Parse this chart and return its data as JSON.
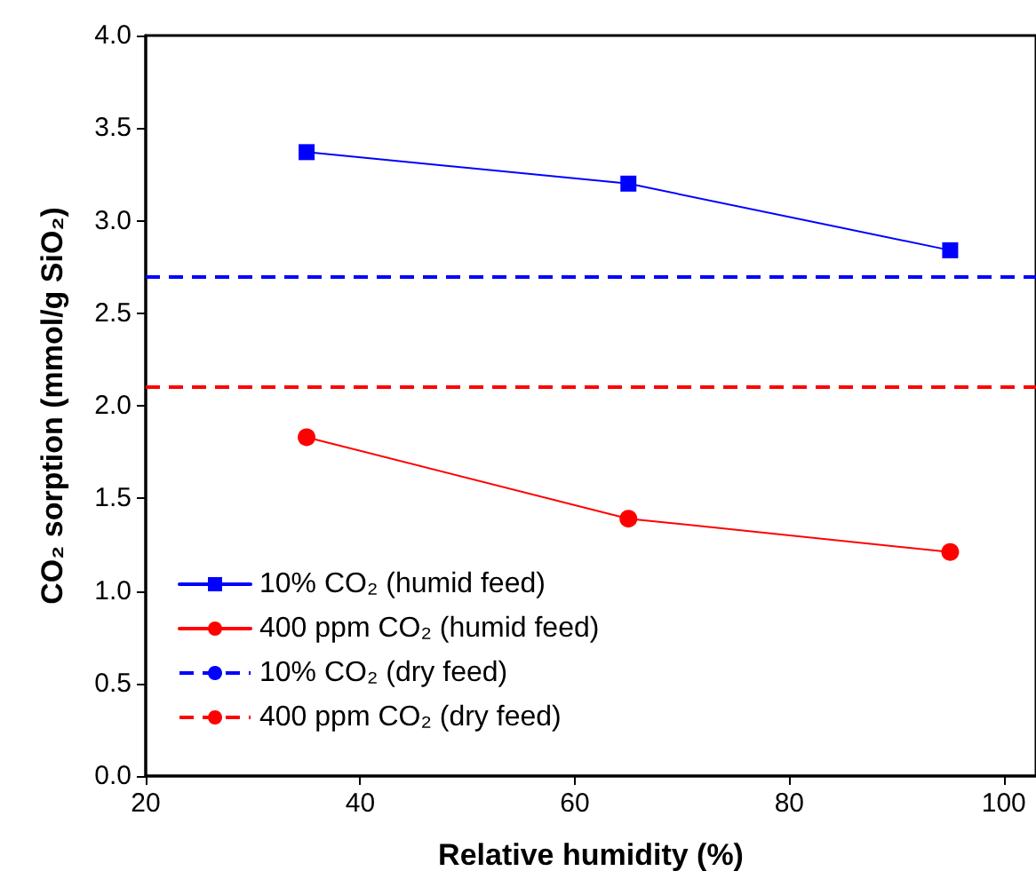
{
  "chart_data": {
    "type": "line",
    "xlabel": "Relative humidity (%)",
    "ylabel": "CO₂ sorption (mmol/g SiO₂)",
    "x": [
      35,
      65,
      95
    ],
    "series": [
      {
        "name": "10% CO₂ (humid feed)",
        "color": "#0000ff",
        "values": [
          3.37,
          3.2,
          2.84
        ],
        "marker": "square"
      },
      {
        "name": "400 ppm CO₂ (humid feed)",
        "color": "#ff0000",
        "values": [
          1.83,
          1.39,
          1.21
        ],
        "marker": "circle"
      }
    ],
    "ref_lines": [
      {
        "axis": "y",
        "value": 2.7,
        "label": "10% CO₂ (dry feed)",
        "color": "#0000ff",
        "line_style": "dashed"
      },
      {
        "axis": "y",
        "value": 2.1,
        "label": "400 ppm CO₂ (dry feed)",
        "color": "#ff0000",
        "line_style": "dashed"
      }
    ],
    "xlim": [
      20,
      103
    ],
    "xticks": [
      20,
      40,
      60,
      80,
      100
    ],
    "ylim": [
      0,
      4
    ],
    "yticks": [
      {
        "value": 0,
        "label": "0.0"
      },
      {
        "value": 0.5,
        "label": "0.5"
      },
      {
        "value": 1,
        "label": "1.0"
      },
      {
        "value": 1.5,
        "label": "1.5"
      },
      {
        "value": 2,
        "label": "2.0"
      },
      {
        "value": 2.5,
        "label": "2.5"
      },
      {
        "value": 3,
        "label": "3.0"
      },
      {
        "value": 3.5,
        "label": "3.5"
      },
      {
        "value": 4,
        "label": "4.0"
      }
    ],
    "grid": false,
    "legend": "bottom left"
  }
}
